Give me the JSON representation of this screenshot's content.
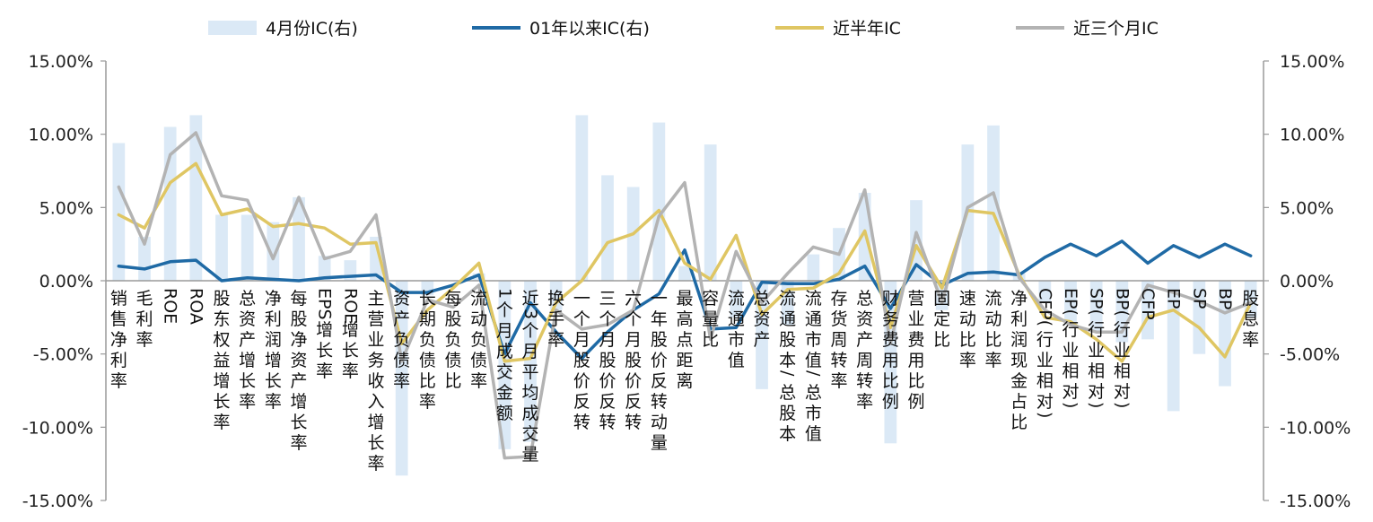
{
  "chart_data": {
    "type": "bar+line",
    "title": "",
    "xlabel": "",
    "ylabel_left": "",
    "ylabel_right": "",
    "ylim_left": [
      -0.15,
      0.15
    ],
    "ylim_right": [
      -0.15,
      0.15
    ],
    "y_ticks": [
      "15.00%",
      "10.00%",
      "5.00%",
      "0.00%",
      "-5.00%",
      "-10.00%",
      "-15.00%"
    ],
    "legend_position": "top",
    "categories": [
      "销售净利率",
      "毛利率",
      "ROE",
      "ROA",
      "股东权益增长率",
      "总资产增长率",
      "净利润增长率",
      "每股净资产增长率",
      "EPS增长率",
      "ROE增长率",
      "主营业务收入增长率",
      "资产负债率",
      "长期负债比率",
      "每股负债比",
      "流动负债率",
      "1个月成交金额",
      "近3个月平均成交量",
      "换手率",
      "一个月股价反转",
      "三个月股价反转",
      "六个月股价反转",
      "一年股价反转动量",
      "最高点距离",
      "容量比",
      "流通市值",
      "总资产",
      "流通股本/总股本",
      "流通市值/总市值",
      "存货周转率",
      "总资产周转率",
      "财务费用比例",
      "营业费用比例",
      "固定比",
      "速动比率",
      "流动比率",
      "净利润现金占比",
      "CFP(行业相对)",
      "EP(行业相对)",
      "SP(行业相对)",
      "BP(行业相对)",
      "CFP",
      "EP",
      "SP",
      "BP",
      "股息率"
    ],
    "series": [
      {
        "name": "4月份IC(右)",
        "type": "bar",
        "axis": "right",
        "color": "#dbe9f6",
        "values": [
          0.094,
          0.03,
          0.105,
          0.113,
          0.045,
          0.045,
          0.04,
          0.057,
          0.017,
          0.014,
          0.03,
          -0.133,
          -0.01,
          0.0,
          0.005,
          -0.115,
          -0.11,
          -0.02,
          0.113,
          0.072,
          0.064,
          0.108,
          0.01,
          0.093,
          -0.025,
          -0.074,
          -0.03,
          0.018,
          0.036,
          0.06,
          -0.111,
          0.055,
          -0.02,
          0.093,
          0.106,
          0.005,
          -0.015,
          -0.03,
          -0.035,
          -0.042,
          -0.04,
          -0.089,
          -0.05,
          -0.072,
          -0.025
        ]
      },
      {
        "name": "01年以来IC(右)",
        "type": "line",
        "axis": "right",
        "color": "#1f6aa5",
        "values": [
          0.01,
          0.008,
          0.013,
          0.014,
          0.0,
          0.002,
          0.001,
          0.0,
          0.002,
          0.003,
          0.004,
          -0.008,
          -0.008,
          -0.003,
          0.004,
          -0.05,
          -0.015,
          -0.035,
          -0.053,
          -0.035,
          -0.02,
          -0.009,
          0.021,
          -0.033,
          -0.032,
          -0.001,
          -0.002,
          -0.002,
          0.001,
          0.01,
          -0.019,
          0.011,
          -0.003,
          0.005,
          0.006,
          0.004,
          0.016,
          0.025,
          0.017,
          0.027,
          0.012,
          0.024,
          0.016,
          0.025,
          0.017
        ]
      },
      {
        "name": "近半年IC",
        "type": "line",
        "axis": "left",
        "color": "#dfc663",
        "values": [
          0.045,
          0.036,
          0.067,
          0.08,
          0.045,
          0.049,
          0.037,
          0.039,
          0.036,
          0.025,
          0.026,
          -0.043,
          -0.02,
          -0.005,
          0.012,
          -0.055,
          -0.053,
          -0.015,
          0.0,
          0.026,
          0.032,
          0.048,
          0.012,
          0.001,
          0.031,
          -0.023,
          -0.006,
          -0.005,
          0.005,
          0.034,
          -0.032,
          0.024,
          -0.005,
          0.048,
          0.046,
          0.004,
          -0.025,
          -0.028,
          -0.04,
          -0.055,
          -0.025,
          -0.02,
          -0.032,
          -0.052,
          -0.015
        ]
      },
      {
        "name": "近三个月IC",
        "type": "line",
        "axis": "left",
        "color": "#b3b3b3",
        "values": [
          0.064,
          0.025,
          0.086,
          0.101,
          0.058,
          0.055,
          0.015,
          0.057,
          0.015,
          0.02,
          0.045,
          -0.055,
          -0.013,
          -0.018,
          -0.003,
          -0.121,
          -0.12,
          -0.02,
          -0.033,
          -0.03,
          -0.02,
          0.044,
          0.067,
          -0.04,
          0.02,
          -0.015,
          0.005,
          0.023,
          0.018,
          0.062,
          -0.043,
          0.033,
          -0.015,
          0.05,
          0.06,
          0.002,
          -0.02,
          -0.03,
          -0.035,
          -0.035,
          -0.003,
          -0.008,
          -0.014,
          -0.022,
          -0.015
        ]
      }
    ]
  }
}
